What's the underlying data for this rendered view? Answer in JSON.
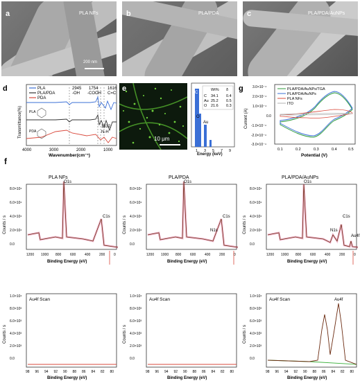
{
  "panels": {
    "a": {
      "label": "a",
      "title": "PLA NFs",
      "scalebar": "200 nm"
    },
    "b": {
      "label": "b",
      "title": "PLA/PDA"
    },
    "c": {
      "label": "c",
      "title": "PLA/PDA/AuNPs"
    }
  },
  "ftir": {
    "label": "d",
    "xlabel": "Wavenumber(cm⁻¹)",
    "ylabel": "Transmittance(%)",
    "xticks": [
      "4000",
      "3000",
      "2000",
      "1000"
    ],
    "legend": [
      "PLA",
      "PLA/PDA",
      "PDA"
    ],
    "annotations": [
      "2945",
      "-OH",
      "1754",
      "-COOH",
      "1616",
      "C=C",
      "1532",
      "N-H"
    ],
    "struct_labels": [
      "PLA",
      "PDA"
    ],
    "colors": {
      "PLA": "#3a6fd6",
      "PLA/PDA": "#333333",
      "PDA": "#d9483b"
    }
  },
  "eds": {
    "label": "e",
    "scalebar": "10 μm",
    "table_header": [
      "",
      "Wt%",
      "δ"
    ],
    "table_rows": [
      [
        "C",
        "34.1",
        "0.4"
      ],
      [
        "Au",
        "25.2",
        "0.5"
      ],
      [
        "O",
        "21.6",
        "0.3"
      ]
    ],
    "xlabel": "Energy (keV)",
    "xticks": [
      "1",
      "3",
      "5",
      "7",
      "9"
    ],
    "peak_labels": [
      "C",
      "O",
      "Au"
    ]
  },
  "cv": {
    "label": "g",
    "xlabel": "Potential (V)",
    "ylabel": "Current (A)",
    "xticks": [
      "0.1",
      "0.2",
      "0.3",
      "0.4",
      "0.5"
    ],
    "yticks": [
      "3.0×10⁻⁴",
      "2.0×10⁻⁴",
      "1.0×10⁻⁴",
      "0.0",
      "-1.0×10⁻⁴",
      "-2.0×10⁻⁴",
      "-3.0×10⁻⁴"
    ],
    "legend": [
      "PLA/PDA/AuNPs/TGA",
      "PLA/PDA/AuNPs",
      "PLA NFs",
      "ITO"
    ],
    "colors": [
      "#2b9a3a",
      "#3a6fd6",
      "#d9483b",
      "#b0b0b0"
    ]
  },
  "xps": {
    "label": "f",
    "columns": [
      {
        "title": "PLA NFs",
        "peaks": [
          "O1s",
          "C1s"
        ],
        "scan": "Au4f Scan",
        "scan_peaks": []
      },
      {
        "title": "PLA/PDA",
        "peaks": [
          "O1s",
          "C1s",
          "N1s"
        ],
        "scan": "Au4f Scan",
        "scan_peaks": []
      },
      {
        "title": "PLA/PDA/AuNPs",
        "peaks": [
          "O1s",
          "C1s",
          "N1s",
          "Au4f"
        ],
        "scan": "Au4f Scan",
        "scan_peaks": [
          "Au4f"
        ]
      }
    ],
    "survey_yticks": [
      "8.0×10⁴",
      "6.0×10⁴",
      "4.0×10⁴",
      "2.0×10⁴",
      "0.0"
    ],
    "survey_xticks": [
      "1200",
      "1000",
      "800",
      "600",
      "400",
      "200",
      "0"
    ],
    "scan_yticks": [
      "1.0×10⁴",
      "8.0×10³",
      "6.0×10³",
      "4.0×10³",
      "2.0×10³",
      "0.0"
    ],
    "scan_xticks": [
      "98",
      "96",
      "94",
      "92",
      "90",
      "88",
      "86",
      "84",
      "82",
      "80"
    ],
    "ylabel": "Counts / s",
    "xlabel": "Binding Energy (eV)",
    "colors": {
      "line": "#6b2a10",
      "fit": "#e04a8a",
      "bg": "#3cb13c"
    }
  }
}
